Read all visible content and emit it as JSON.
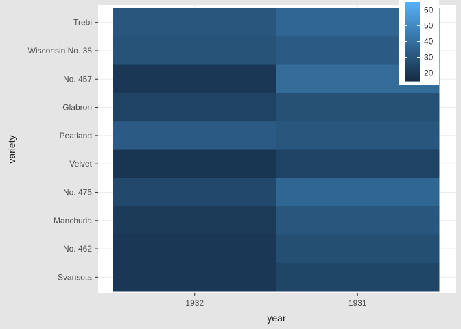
{
  "chart_data": {
    "type": "heatmap",
    "title": "",
    "xlabel": "year",
    "ylabel": "variety",
    "x_categories": [
      "1932",
      "1931"
    ],
    "y_categories": [
      "Trebi",
      "Wisconsin No. 38",
      "No. 457",
      "Glabron",
      "Peatland",
      "Velvet",
      "No. 475",
      "Manchuria",
      "No. 462",
      "Svansota"
    ],
    "values": [
      [
        31,
        37
      ],
      [
        30,
        33
      ],
      [
        20,
        39
      ],
      [
        24,
        29
      ],
      [
        33,
        31
      ],
      [
        19,
        24
      ],
      [
        26,
        37
      ],
      [
        21,
        31
      ],
      [
        20,
        28
      ],
      [
        20,
        25
      ]
    ],
    "color_scale": {
      "low_color": "#132b43",
      "high_color": "#56b1f7",
      "domain": [
        15,
        65
      ],
      "legend_ticks": [
        20,
        30,
        40,
        50,
        60
      ]
    },
    "legend_placement": "top-right",
    "grid": true
  }
}
